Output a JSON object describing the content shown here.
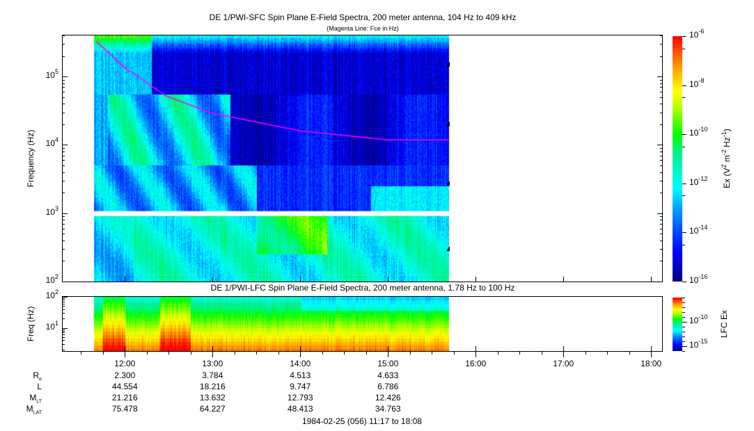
{
  "chart_data": [
    {
      "type": "heatmap",
      "title": "DE 1/PWI-SFC  Spin Plane E-Field Spectra, 200 meter antenna, 104 Hz to 409 kHz",
      "subtitle": "(Magenta Line: Fce in Hz)",
      "ylabel": "Frequency (Hz)",
      "yscale": "log",
      "ylim": [
        100,
        409000
      ],
      "yticks": [
        {
          "base": "10",
          "exp": "2"
        },
        {
          "base": "10",
          "exp": "3"
        },
        {
          "base": "10",
          "exp": "4"
        },
        {
          "base": "10",
          "exp": "5"
        }
      ],
      "colorbar": {
        "label_main": "Ex (V",
        "label_sup1": "2",
        "label_mid": " m",
        "label_sup2": "-2",
        "label_mid2": " Hz",
        "label_sup3": "-1",
        "label_end": ")",
        "range_log10": [
          -16,
          -6
        ],
        "ticks": [
          {
            "base": "10",
            "exp": "-6"
          },
          {
            "base": "10",
            "exp": "-8"
          },
          {
            "base": "10",
            "exp": "-10"
          },
          {
            "base": "10",
            "exp": "-12"
          },
          {
            "base": "10",
            "exp": "-14"
          },
          {
            "base": "10",
            "exp": "-16"
          }
        ]
      },
      "data_time_range_hours": [
        11.65,
        15.7
      ],
      "fce_line": {
        "color": "#ff00ff",
        "time_hours": [
          11.67,
          12.0,
          12.47,
          13.0,
          14.0,
          15.0,
          15.7
        ],
        "freq_hz": [
          330000,
          135000,
          52000,
          29000,
          16000,
          11800,
          11800
        ]
      }
    },
    {
      "type": "heatmap",
      "title": "DE 1/PWI-LFC  Spin Plane E-Field Spectra, 200 meter antenna, 1.78 Hz to 100 Hz",
      "ylabel": "Freq (Hz)",
      "yscale": "log",
      "ylim": [
        1.78,
        100
      ],
      "yticks": [
        {
          "base": "10",
          "exp": "1"
        },
        {
          "base": "10",
          "exp": "2"
        }
      ],
      "colorbar": {
        "label": "LFC Ex",
        "range_log10": [
          -16,
          -5
        ],
        "ticks": [
          {
            "base": "10",
            "exp": "-10"
          },
          {
            "base": "10",
            "exp": "-15"
          }
        ]
      },
      "data_time_range_hours": [
        11.65,
        15.7
      ]
    }
  ],
  "time_axis": {
    "range_hours": [
      11.2833,
      18.1333
    ],
    "ticks": [
      "12:00",
      "13:00",
      "14:00",
      "15:00",
      "16:00",
      "17:00",
      "18:00"
    ]
  },
  "ephemeris": {
    "rows": [
      {
        "label": "R",
        "sub": "e",
        "values": [
          "2.300",
          "3.784",
          "4.513",
          "4.633"
        ]
      },
      {
        "label": "L",
        "sub": "",
        "values": [
          "44.554",
          "18.216",
          "9.747",
          "6.786"
        ]
      },
      {
        "label": "M",
        "sub": "LT",
        "values": [
          "21.216",
          "13.632",
          "12.793",
          "12.426"
        ]
      },
      {
        "label": "M",
        "sub": "LAT",
        "values": [
          "75.478",
          "64.227",
          "48.413",
          "34.763"
        ]
      }
    ]
  },
  "footer": "1984-02-25 (056) 11:17 to 18:08"
}
